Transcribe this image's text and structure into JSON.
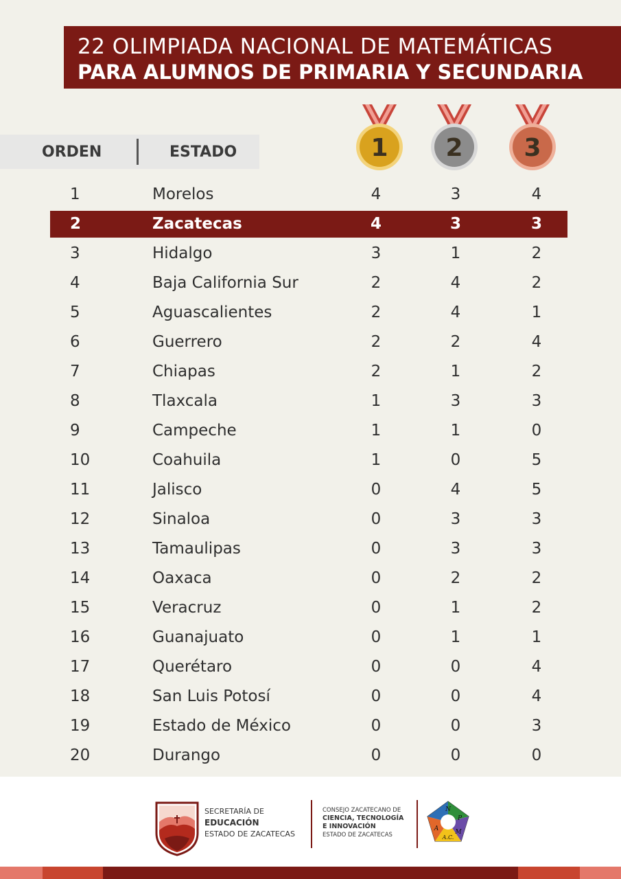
{
  "title": {
    "line1": "22 OLIMPIADA NACIONAL DE MATEMÁTICAS",
    "line2": "PARA ALUMNOS DE PRIMARIA Y SECUNDARIA"
  },
  "columns": {
    "orden": "ORDEN",
    "estado": "ESTADO"
  },
  "medals": [
    {
      "label": "1",
      "color": "#d9a21e",
      "ring": "#f3d37a"
    },
    {
      "label": "2",
      "color": "#8c8c8c",
      "ring": "#d8d8d8"
    },
    {
      "label": "3",
      "color": "#c9694a",
      "ring": "#efb09a"
    }
  ],
  "rows": [
    {
      "orden": "1",
      "estado": "Morelos",
      "oro": "4",
      "plata": "3",
      "bronce": "4"
    },
    {
      "orden": "2",
      "estado": "Zacatecas",
      "oro": "4",
      "plata": "3",
      "bronce": "3"
    },
    {
      "orden": "3",
      "estado": "Hidalgo",
      "oro": "3",
      "plata": "1",
      "bronce": "2"
    },
    {
      "orden": "4",
      "estado": "Baja California Sur",
      "oro": "2",
      "plata": "4",
      "bronce": "2"
    },
    {
      "orden": "5",
      "estado": "Aguascalientes",
      "oro": "2",
      "plata": "4",
      "bronce": "1"
    },
    {
      "orden": "6",
      "estado": "Guerrero",
      "oro": "2",
      "plata": "2",
      "bronce": "4"
    },
    {
      "orden": "7",
      "estado": "Chiapas",
      "oro": "2",
      "plata": "1",
      "bronce": "2"
    },
    {
      "orden": "8",
      "estado": "Tlaxcala",
      "oro": "1",
      "plata": "3",
      "bronce": "3"
    },
    {
      "orden": "9",
      "estado": "Campeche",
      "oro": "1",
      "plata": "1",
      "bronce": "0"
    },
    {
      "orden": "10",
      "estado": "Coahuila",
      "oro": "1",
      "plata": "0",
      "bronce": "5"
    },
    {
      "orden": "11",
      "estado": "Jalisco",
      "oro": "0",
      "plata": "4",
      "bronce": "5"
    },
    {
      "orden": "12",
      "estado": "Sinaloa",
      "oro": "0",
      "plata": "3",
      "bronce": "3"
    },
    {
      "orden": "13",
      "estado": "Tamaulipas",
      "oro": "0",
      "plata": "3",
      "bronce": "3"
    },
    {
      "orden": "14",
      "estado": "Oaxaca",
      "oro": "0",
      "plata": "2",
      "bronce": "2"
    },
    {
      "orden": "15",
      "estado": "Veracruz",
      "oro": "0",
      "plata": "1",
      "bronce": "2"
    },
    {
      "orden": "16",
      "estado": "Guanajuato",
      "oro": "0",
      "plata": "1",
      "bronce": "1"
    },
    {
      "orden": "17",
      "estado": "Querétaro",
      "oro": "0",
      "plata": "0",
      "bronce": "4"
    },
    {
      "orden": "18",
      "estado": "San Luis Potosí",
      "oro": "0",
      "plata": "0",
      "bronce": "4"
    },
    {
      "orden": "19",
      "estado": "Estado de México",
      "oro": "0",
      "plata": "0",
      "bronce": "3"
    },
    {
      "orden": "20",
      "estado": "Durango",
      "oro": "0",
      "plata": "0",
      "bronce": "0"
    }
  ],
  "highlight_orden": "2",
  "footer": {
    "sec": {
      "l1": "SECRETARÍA DE",
      "l2": "EDUCACIÓN",
      "l3": "ESTADO DE ZACATECAS"
    },
    "cz": {
      "l1": "CONSEJO ZACATECANO DE",
      "l2": "CIENCIA, TECNOLOGÍA",
      "l3": "E INNOVACIÓN",
      "l4": "ESTADO DE ZACATECAS"
    },
    "anpm": {
      "n": "N",
      "p": "P",
      "a": "A",
      "m": "M",
      "ac": "A.C."
    }
  },
  "colors": {
    "primary": "#7b1a15",
    "background": "#f2f1ea",
    "stripe_light": "#e4786a",
    "stripe_mid": "#c8452f"
  }
}
